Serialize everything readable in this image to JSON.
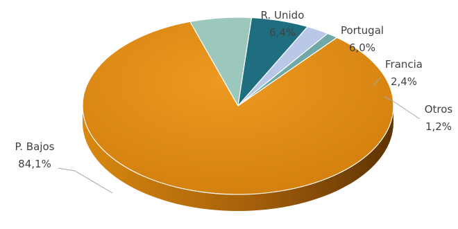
{
  "chart_data": {
    "type": "pie",
    "style": "3d",
    "slices": [
      {
        "label": "P. Bajos",
        "value": 84.1,
        "value_label": "84,1%",
        "color": "#e08a12"
      },
      {
        "label": "R. Unido",
        "value": 6.4,
        "value_label": "6,4%",
        "color": "#9cc7bc"
      },
      {
        "label": "Portugal",
        "value": 6.0,
        "value_label": "6,0%",
        "color": "#1f6e7f"
      },
      {
        "label": "Francia",
        "value": 2.4,
        "value_label": "2,4%",
        "color": "#b9c8e6"
      },
      {
        "label": "Otros",
        "value": 1.2,
        "value_label": "1,2%",
        "color": "#6fa8a6"
      }
    ],
    "legend": "none"
  }
}
